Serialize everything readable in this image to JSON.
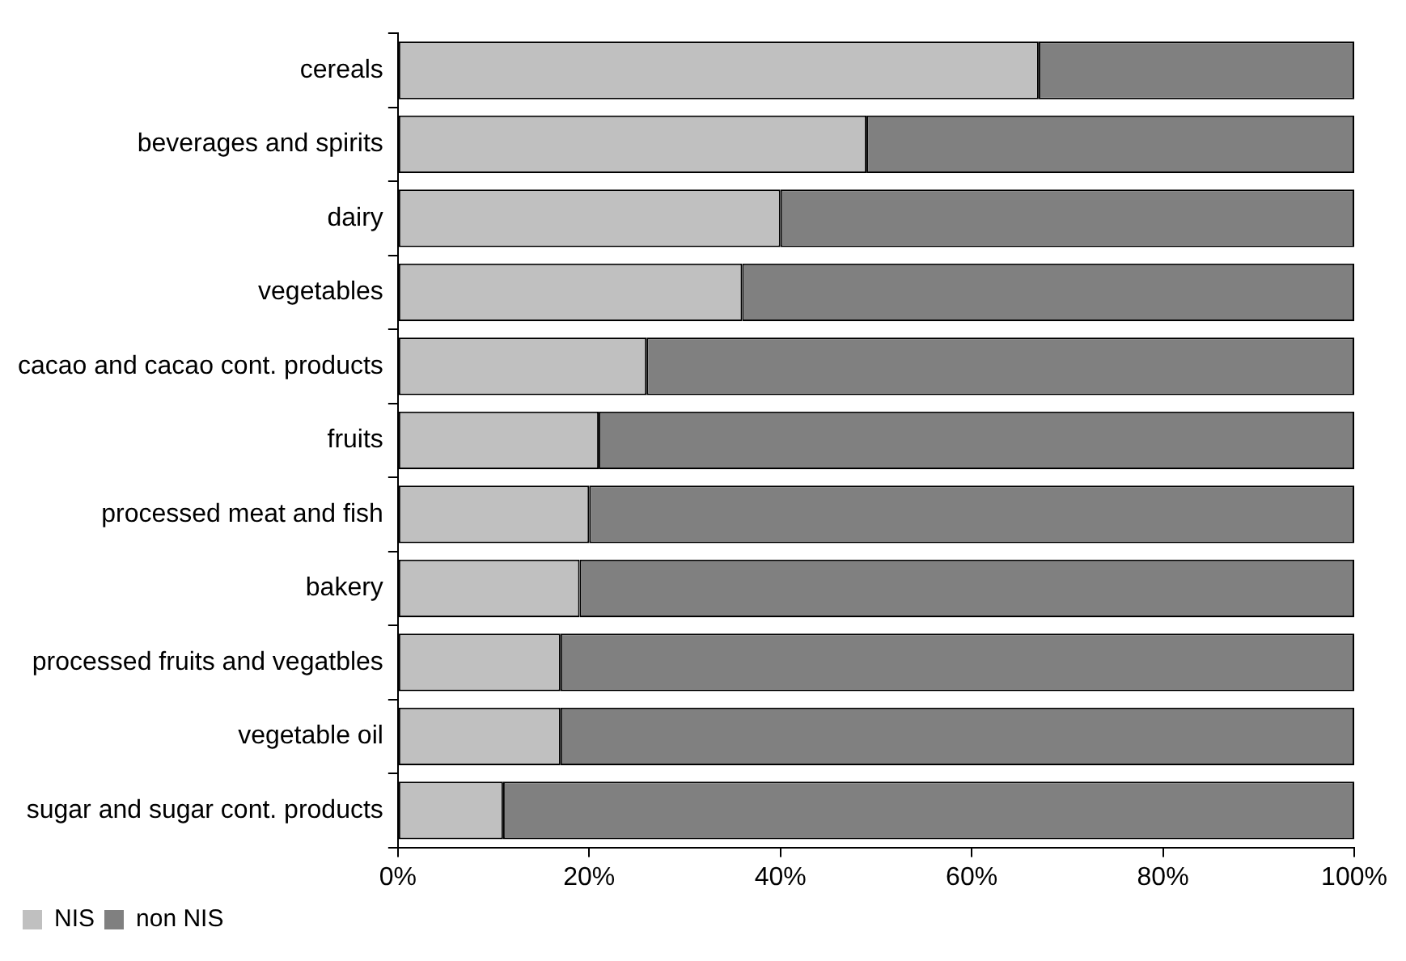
{
  "chart_data": {
    "type": "bar",
    "orientation": "horizontal",
    "stacked": true,
    "categories": [
      "cereals",
      "beverages and spirits",
      "dairy",
      "vegetables",
      "cacao and cacao cont. products",
      "fruits",
      "processed meat and fish",
      "bakery",
      "processed fruits and vegatbles",
      "vegetable oil",
      "sugar and sugar cont. products"
    ],
    "series": [
      {
        "name": "NIS",
        "color": "#c0c0c0",
        "values": [
          67,
          49,
          40,
          36,
          26,
          21,
          20,
          19,
          17,
          17,
          11
        ]
      },
      {
        "name": "non NIS",
        "color": "#808080",
        "values": [
          33,
          51,
          60,
          64,
          74,
          79,
          80,
          81,
          83,
          83,
          89
        ]
      }
    ],
    "xlim": [
      0,
      100
    ],
    "xticks": [
      {
        "value": 0,
        "label": "0%"
      },
      {
        "value": 20,
        "label": "20%"
      },
      {
        "value": 40,
        "label": "40%"
      },
      {
        "value": 60,
        "label": "60%"
      },
      {
        "value": 80,
        "label": "80%"
      },
      {
        "value": 100,
        "label": "100%"
      }
    ],
    "grid": false,
    "legend": "bottom left"
  }
}
